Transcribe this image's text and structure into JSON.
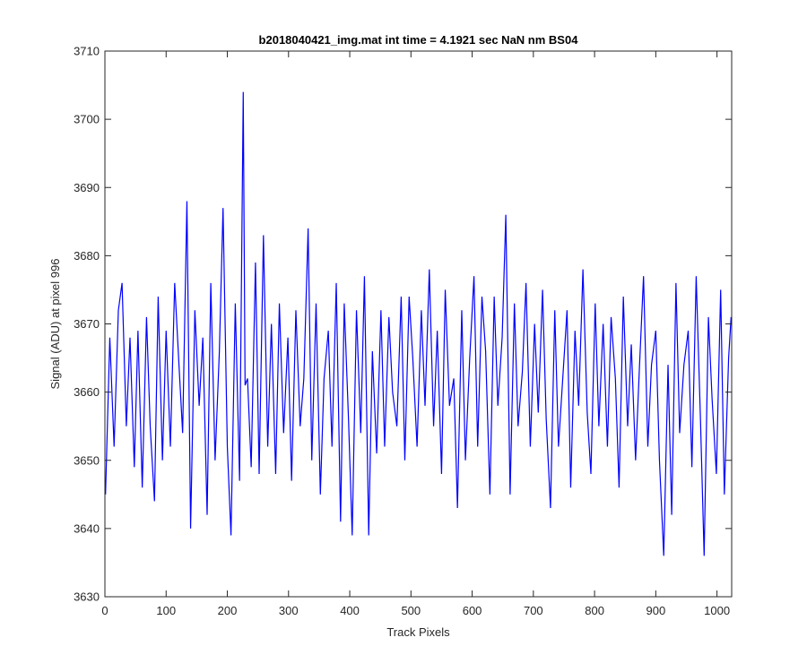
{
  "colors": {
    "figure_background": "#ffffff",
    "axes_background": "#ffffff",
    "axis_color": "#262626",
    "series_color": "#0000ff"
  },
  "chart_data": {
    "type": "line",
    "title": "b2018040421_img.mat int time = 4.1921 sec  NaN nm BS04",
    "xlabel": "Track Pixels",
    "ylabel": "Signal (ADU) at pixel 996",
    "xlim": [
      0,
      1024
    ],
    "ylim": [
      3630,
      3710
    ],
    "xticks": [
      0,
      100,
      200,
      300,
      400,
      500,
      600,
      700,
      800,
      900,
      1000
    ],
    "yticks": [
      3630,
      3640,
      3650,
      3660,
      3670,
      3680,
      3690,
      3700,
      3710
    ],
    "grid": false,
    "legend": "none",
    "series": [
      {
        "x": [
          1,
          8,
          15,
          22,
          28,
          35,
          41,
          48,
          54,
          61,
          68,
          74,
          81,
          87,
          94,
          100,
          107,
          114,
          121,
          127,
          134,
          140,
          147,
          154,
          160,
          167,
          173,
          180,
          187,
          193,
          200,
          206,
          213,
          220,
          226,
          229,
          233,
          239,
          246,
          252,
          259,
          266,
          272,
          279,
          285,
          292,
          299,
          305,
          312,
          319,
          325,
          332,
          338,
          345,
          352,
          358,
          365,
          371,
          378,
          385,
          391,
          398,
          404,
          411,
          418,
          424,
          431,
          437,
          444,
          451,
          457,
          464,
          470,
          477,
          484,
          490,
          497,
          503,
          510,
          517,
          523,
          530,
          537,
          543,
          550,
          556,
          563,
          570,
          576,
          583,
          589,
          596,
          603,
          609,
          616,
          622,
          629,
          636,
          642,
          649,
          655,
          662,
          669,
          675,
          682,
          688,
          695,
          702,
          708,
          715,
          721,
          728,
          735,
          741,
          748,
          755,
          761,
          768,
          774,
          781,
          788,
          794,
          801,
          807,
          814,
          821,
          827,
          834,
          840,
          847,
          854,
          860,
          867,
          873,
          880,
          887,
          893,
          900,
          906,
          913,
          920,
          926,
          933,
          939,
          946,
          953,
          959,
          966,
          973,
          979,
          986,
          992,
          999,
          1006,
          1012,
          1019,
          1023
        ],
        "values": [
          3645,
          3668,
          3652,
          3672,
          3676,
          3655,
          3668,
          3649,
          3669,
          3646,
          3671,
          3655,
          3644,
          3674,
          3650,
          3669,
          3652,
          3676,
          3664,
          3654,
          3688,
          3640,
          3672,
          3658,
          3668,
          3642,
          3676,
          3650,
          3666,
          3687,
          3652,
          3639,
          3673,
          3647,
          3704,
          3661,
          3662,
          3649,
          3679,
          3648,
          3683,
          3652,
          3670,
          3648,
          3673,
          3654,
          3668,
          3647,
          3672,
          3655,
          3662,
          3684,
          3650,
          3673,
          3645,
          3662,
          3669,
          3652,
          3676,
          3641,
          3673,
          3656,
          3639,
          3672,
          3654,
          3677,
          3639,
          3666,
          3651,
          3672,
          3652,
          3671,
          3660,
          3655,
          3674,
          3650,
          3674,
          3665,
          3652,
          3672,
          3658,
          3678,
          3655,
          3669,
          3648,
          3675,
          3658,
          3662,
          3643,
          3672,
          3650,
          3665,
          3677,
          3652,
          3674,
          3666,
          3645,
          3674,
          3658,
          3668,
          3686,
          3645,
          3673,
          3655,
          3663,
          3676,
          3652,
          3670,
          3657,
          3675,
          3656,
          3643,
          3672,
          3652,
          3662,
          3672,
          3646,
          3669,
          3658,
          3678,
          3657,
          3648,
          3673,
          3655,
          3670,
          3652,
          3671,
          3662,
          3646,
          3674,
          3655,
          3667,
          3650,
          3663,
          3677,
          3652,
          3664,
          3669,
          3650,
          3636,
          3664,
          3642,
          3676,
          3654,
          3664,
          3669,
          3649,
          3677,
          3656,
          3636,
          3671,
          3659,
          3648,
          3675,
          3645,
          3665,
          3671
        ]
      }
    ]
  }
}
